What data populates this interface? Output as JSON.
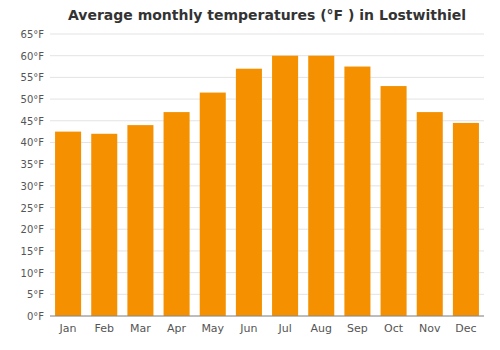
{
  "chart_data": {
    "type": "bar",
    "title": "Average monthly temperatures (°F ) in Lostwithiel",
    "categories": [
      "Jan",
      "Feb",
      "Mar",
      "Apr",
      "May",
      "Jun",
      "Jul",
      "Aug",
      "Sep",
      "Oct",
      "Nov",
      "Dec"
    ],
    "values": [
      42.5,
      42.0,
      44.0,
      47.0,
      51.5,
      57.0,
      60.0,
      60.0,
      57.5,
      53.0,
      47.0,
      44.5
    ],
    "color": "#F59000",
    "ylim": [
      0,
      65
    ],
    "yticks": [
      {
        "value": 0,
        "label": "0°F"
      },
      {
        "value": 5,
        "label": "5°F"
      },
      {
        "value": 10,
        "label": "10°F"
      },
      {
        "value": 15,
        "label": "15°F"
      },
      {
        "value": 20,
        "label": "20°F"
      },
      {
        "value": 25,
        "label": "25°F"
      },
      {
        "value": 30,
        "label": "30°F"
      },
      {
        "value": 35,
        "label": "35°F"
      },
      {
        "value": 40,
        "label": "40°F"
      },
      {
        "value": 45,
        "label": "45°F"
      },
      {
        "value": 50,
        "label": "50°F"
      },
      {
        "value": 55,
        "label": "55°F"
      },
      {
        "value": 60,
        "label": "60°F"
      },
      {
        "value": 65,
        "label": "65°F"
      }
    ],
    "grid": true
  }
}
